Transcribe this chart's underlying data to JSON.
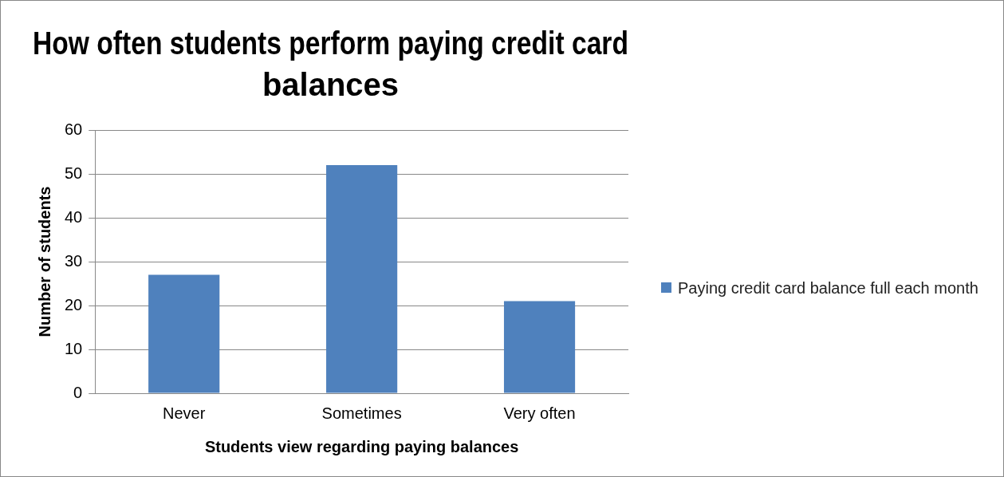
{
  "chart_data": {
    "type": "bar",
    "title": "How often students perform paying credit card balances",
    "xlabel": "Students view regarding paying balances",
    "ylabel": "Number of students",
    "categories": [
      "Never",
      "Sometimes",
      "Very often"
    ],
    "series": [
      {
        "name": "Paying credit card balance full each month",
        "color": "#4f81bd",
        "values": [
          27,
          52,
          21
        ]
      }
    ],
    "ylim": [
      0,
      60
    ],
    "yticks": [
      0,
      10,
      20,
      30,
      40,
      50,
      60
    ],
    "grid": "y",
    "legend": "right"
  }
}
